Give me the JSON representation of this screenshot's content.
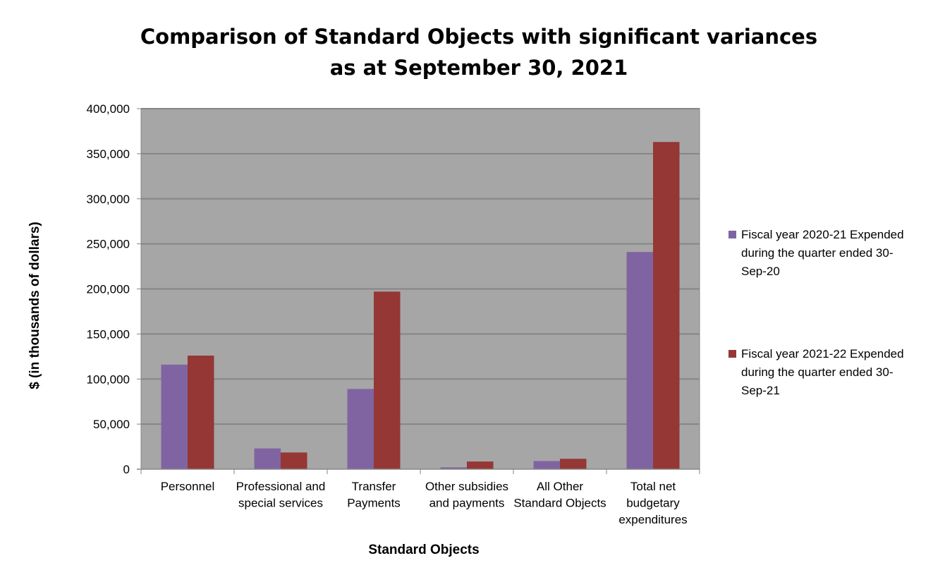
{
  "chart_data": {
    "type": "bar",
    "title_line1": "Comparison of Standard Objects with significant variances",
    "title_line2": "as at September 30, 2021",
    "xlabel": "Standard Objects",
    "ylabel": "$ (in thousands of  dollars)",
    "categories": [
      [
        "Personnel"
      ],
      [
        "Professional and",
        "special services"
      ],
      [
        "Transfer",
        "Payments"
      ],
      [
        "Other subsidies",
        "and payments"
      ],
      [
        "All Other",
        "Standard Objects"
      ],
      [
        "Total net",
        "budgetary",
        "expenditures"
      ]
    ],
    "series": [
      {
        "name": "Fiscal year 2020-21 Expended during the quarter ended 30-Sep-20",
        "name_lines": [
          "Fiscal year 2020-21 Expended",
          "during the quarter ended 30-",
          "Sep-20"
        ],
        "color": "#8064a2",
        "values": [
          116000,
          23000,
          89000,
          2000,
          9000,
          241000
        ]
      },
      {
        "name": "Fiscal year 2021-22 Expended during the quarter ended 30-Sep-21",
        "name_lines": [
          "Fiscal year 2021-22 Expended",
          "during the quarter ended 30-",
          "Sep-21"
        ],
        "color": "#953735",
        "values": [
          126000,
          18500,
          197000,
          8500,
          11500,
          363000
        ]
      }
    ],
    "ylim": [
      0,
      400000
    ],
    "yticks": [
      0,
      50000,
      100000,
      150000,
      200000,
      250000,
      300000,
      350000,
      400000
    ],
    "ytick_labels": [
      "0",
      "50,000",
      "100,000",
      "150,000",
      "200,000",
      "250,000",
      "300,000",
      "350,000",
      "400,000"
    ],
    "grid": true,
    "plot_background": "#a6a6a6",
    "legend_position": "right"
  }
}
